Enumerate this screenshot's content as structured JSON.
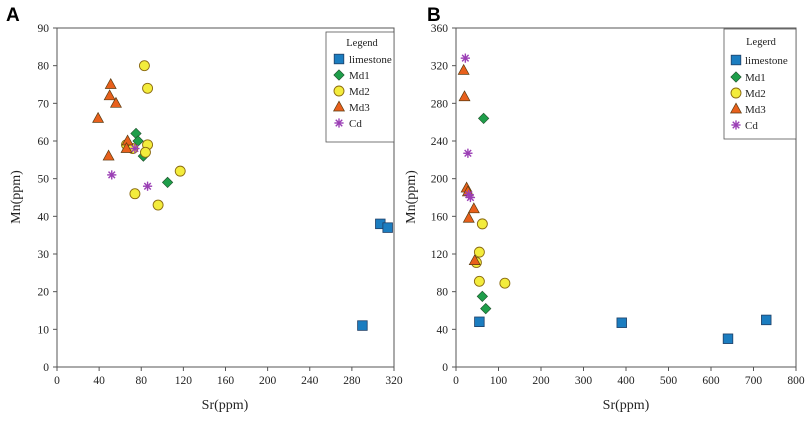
{
  "chart_data": [
    {
      "type": "scatter",
      "panel_label": "A",
      "xlabel": "Sr(ppm)",
      "ylabel": "Mn(ppm)",
      "xlim": [
        0,
        320
      ],
      "ylim": [
        0,
        90
      ],
      "x_ticks": [
        "0",
        "40",
        "80",
        "120",
        "160",
        "200",
        "240",
        "280",
        "320"
      ],
      "y_ticks": [
        "0",
        "10",
        "20",
        "30",
        "40",
        "50",
        "60",
        "70",
        "80",
        "90"
      ],
      "legend": {
        "title": "Legend",
        "position": "top-right"
      },
      "series": [
        {
          "name": "limestone",
          "marker": "square",
          "color": "#1b7dc0",
          "points": [
            [
              290,
              11
            ],
            [
              307,
              38
            ],
            [
              314,
              37
            ]
          ]
        },
        {
          "name": "Md1",
          "marker": "diamond",
          "color": "#1e9e4a",
          "points": [
            [
              75,
              62
            ],
            [
              77,
              60
            ],
            [
              82,
              56
            ],
            [
              105,
              49
            ]
          ]
        },
        {
          "name": "Md2",
          "marker": "circle",
          "color": "#f3ec3c",
          "points": [
            [
              83,
              80
            ],
            [
              86,
              74
            ],
            [
              66,
              59
            ],
            [
              72,
              58
            ],
            [
              86,
              59
            ],
            [
              84,
              57
            ],
            [
              117,
              52
            ],
            [
              74,
              46
            ],
            [
              96,
              43
            ]
          ]
        },
        {
          "name": "Md3",
          "marker": "triangle",
          "color": "#e8601c",
          "points": [
            [
              51,
              75
            ],
            [
              50,
              72
            ],
            [
              56,
              70
            ],
            [
              39,
              66
            ],
            [
              67,
              60
            ],
            [
              66,
              58
            ],
            [
              49,
              56
            ]
          ]
        },
        {
          "name": "Cd",
          "marker": "asterisk",
          "color": "#9b3fb5",
          "points": [
            [
              74,
              58
            ],
            [
              52,
              51
            ],
            [
              86,
              48
            ]
          ]
        }
      ]
    },
    {
      "type": "scatter",
      "panel_label": "B",
      "xlabel": "Sr(ppm)",
      "ylabel": "Mn(ppm)",
      "xlim": [
        0,
        800
      ],
      "ylim": [
        0,
        360
      ],
      "x_ticks": [
        "0",
        "100",
        "200",
        "300",
        "400",
        "500",
        "600",
        "700",
        "800"
      ],
      "y_ticks": [
        "0",
        "40",
        "80",
        "120",
        "160",
        "200",
        "240",
        "280",
        "320",
        "360"
      ],
      "legend": {
        "title": "Legerd",
        "position": "top-right"
      },
      "series": [
        {
          "name": "limestone",
          "marker": "square",
          "color": "#1b7dc0",
          "points": [
            [
              55,
              48
            ],
            [
              390,
              47
            ],
            [
              640,
              30
            ],
            [
              730,
              50
            ]
          ]
        },
        {
          "name": "Md1",
          "marker": "diamond",
          "color": "#1e9e4a",
          "points": [
            [
              65,
              264
            ],
            [
              62,
              75
            ],
            [
              70,
              62
            ]
          ]
        },
        {
          "name": "Md2",
          "marker": "circle",
          "color": "#f3ec3c",
          "points": [
            [
              62,
              152
            ],
            [
              55,
              122
            ],
            [
              48,
              111
            ],
            [
              55,
              91
            ],
            [
              115,
              89
            ]
          ]
        },
        {
          "name": "Md3",
          "marker": "triangle",
          "color": "#e8601c",
          "points": [
            [
              18,
              315
            ],
            [
              20,
              287
            ],
            [
              25,
              190
            ],
            [
              28,
              186
            ],
            [
              42,
              168
            ],
            [
              30,
              158
            ],
            [
              44,
              113
            ]
          ]
        },
        {
          "name": "Cd",
          "marker": "asterisk",
          "color": "#9b3fb5",
          "points": [
            [
              22,
              328
            ],
            [
              28,
              227
            ],
            [
              30,
              183
            ],
            [
              34,
              180
            ]
          ]
        }
      ]
    }
  ]
}
